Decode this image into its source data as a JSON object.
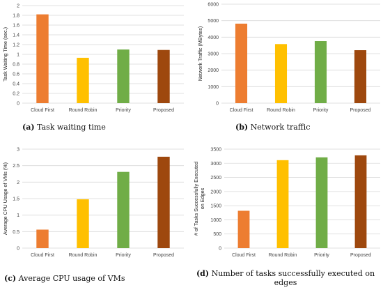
{
  "chart_data": [
    {
      "type": "bar",
      "caption_tag": "(a)",
      "caption_text": "Task waiting time",
      "ylabel": "Task Waiting Time (sec.)",
      "xlabel": "",
      "categories": [
        "Cloud First",
        "Round Robin",
        "Priority",
        "Proposed"
      ],
      "values": [
        1.82,
        0.93,
        1.1,
        1.09
      ],
      "ylim": [
        0,
        2
      ],
      "yticks": [
        "0",
        "0.2",
        "0.4",
        "0.6",
        "0.8",
        "1",
        "1.2",
        "1.4",
        "1.6",
        "1.8",
        "2"
      ],
      "grid": true
    },
    {
      "type": "bar",
      "caption_tag": "(b)",
      "caption_text": "Network traffic",
      "ylabel": "Network Traffic (MBytes)",
      "xlabel": "",
      "categories": [
        "Cloud First",
        "Round Robin",
        "Priority",
        "Proposed"
      ],
      "values": [
        4820,
        3580,
        3760,
        3210
      ],
      "ylim": [
        0,
        6000
      ],
      "yticks": [
        "0",
        "1000",
        "2000",
        "3000",
        "4000",
        "5000",
        "6000"
      ],
      "grid": true
    },
    {
      "type": "bar",
      "caption_tag": "(c)",
      "caption_text": "Average CPU usage of VMs",
      "ylabel": "Average CPU Usage of VMs (%)",
      "xlabel": "",
      "categories": [
        "Cloud First",
        "Round Robin",
        "Priority",
        "Proposed"
      ],
      "values": [
        0.56,
        1.48,
        2.31,
        2.77
      ],
      "ylim": [
        0,
        3
      ],
      "yticks": [
        "0",
        "0.5",
        "1",
        "1.5",
        "2",
        "2.5",
        "3"
      ],
      "grid": true
    },
    {
      "type": "bar",
      "caption_tag": "(d)",
      "caption_text": "Number of tasks successfully executed on edges",
      "ylabel_lines": [
        "# of Tasks Successfully Executed",
        "on Edges"
      ],
      "xlabel": "",
      "categories": [
        "Cloud First",
        "Round Robin",
        "Priority",
        "Proposed"
      ],
      "values": [
        1320,
        3110,
        3210,
        3280
      ],
      "ylim": [
        0,
        3500
      ],
      "yticks": [
        "0",
        "500",
        "1000",
        "1500",
        "2000",
        "2500",
        "3000",
        "3500"
      ],
      "grid": true
    }
  ],
  "colors": {
    "bars": [
      "#ED7D31",
      "#FFC000",
      "#70AD47",
      "#9E480E"
    ],
    "grid": "#d9d9d9",
    "text": "#444444"
  }
}
